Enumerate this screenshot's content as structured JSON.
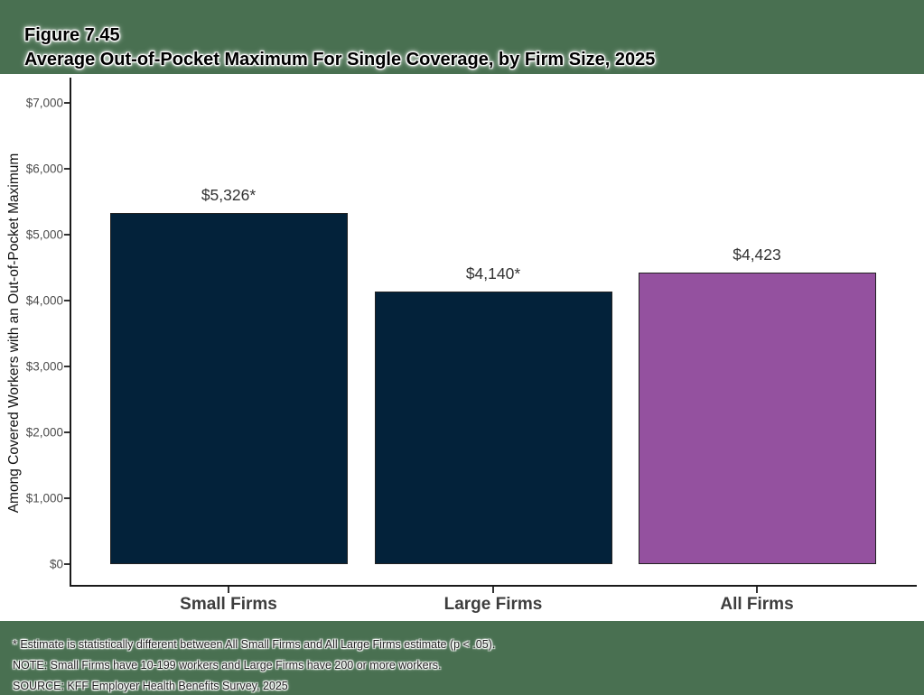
{
  "header": {
    "figure_label": "Figure 7.45",
    "title": "Average Out-of-Pocket Maximum For Single Coverage, by Firm Size, 2025"
  },
  "chart_data": {
    "type": "bar",
    "title": "Average Out-of-Pocket Maximum For Single Coverage, by Firm Size, 2025",
    "categories": [
      "Small Firms",
      "Large Firms",
      "All Firms"
    ],
    "values": [
      5326,
      4140,
      4423
    ],
    "bar_labels": [
      "$5,326*",
      "$4,140*",
      "$4,423"
    ],
    "bar_colors": [
      "#03223A",
      "#03223A",
      "#94519F"
    ],
    "xlabel": "",
    "ylabel": "Among Covered Workers with an Out-of-Pocket Maximum",
    "ylim": [
      0,
      7000
    ],
    "ytick_interval": 1000,
    "ytick_labels": [
      "$0",
      "$1,000",
      "$2,000",
      "$3,000",
      "$4,000",
      "$5,000",
      "$6,000",
      "$7,000"
    ],
    "grid": false,
    "legend": false
  },
  "footnotes": [
    "* Estimate is statistically different between All Small Firms and All Large Firms estimate (p < .05).",
    "NOTE: Small Firms have 10-199 workers and Large Firms have 200 or more workers.",
    "SOURCE: KFF Employer Health Benefits Survey, 2025"
  ],
  "colors": {
    "page_background": "#497051",
    "panel_background": "#FFFFFF",
    "navy_bar": "#03223A",
    "purple_bar": "#94519F",
    "axis_line": "#1A1A1A"
  }
}
